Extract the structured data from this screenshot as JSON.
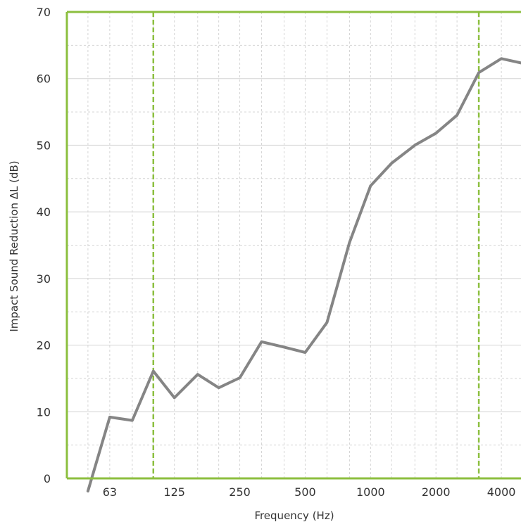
{
  "chart_data": {
    "type": "line",
    "xlabel": "Frequency (Hz)",
    "ylabel": "Impact Sound Reduction ΔL (dB)",
    "ylim": [
      0,
      70
    ],
    "y_ticks": [
      0,
      10,
      20,
      30,
      40,
      50,
      60,
      70
    ],
    "x_scale": "log",
    "x_tick_labels": [
      "63",
      "125",
      "250",
      "500",
      "1000",
      "2000",
      "4000"
    ],
    "x_tick_values": [
      63,
      125,
      250,
      500,
      1000,
      2000,
      4000
    ],
    "xlim": [
      40,
      5000
    ],
    "grid": true,
    "frame_color": "#8cbf3f",
    "line_color": "#858585",
    "grid_color": "#d4d4d4",
    "reference_lines": [
      {
        "x": 100,
        "style": "dashed",
        "color": "#8cbf3f"
      },
      {
        "x": 3150,
        "style": "dashed",
        "color": "#8cbf3f"
      }
    ],
    "series": [
      {
        "x": [
          50,
          63,
          80,
          100,
          125,
          160,
          200,
          250,
          315,
          400,
          500,
          630,
          800,
          1000,
          1250,
          1600,
          2000,
          2500,
          3150,
          4000,
          5000
        ],
        "values": [
          -2,
          9.2,
          8.7,
          16.1,
          12.1,
          15.6,
          13.6,
          15.1,
          20.5,
          19.7,
          18.9,
          23.4,
          35.4,
          43.9,
          47.3,
          50.0,
          51.8,
          54.5,
          60.9,
          63.0,
          62.3
        ]
      }
    ]
  }
}
